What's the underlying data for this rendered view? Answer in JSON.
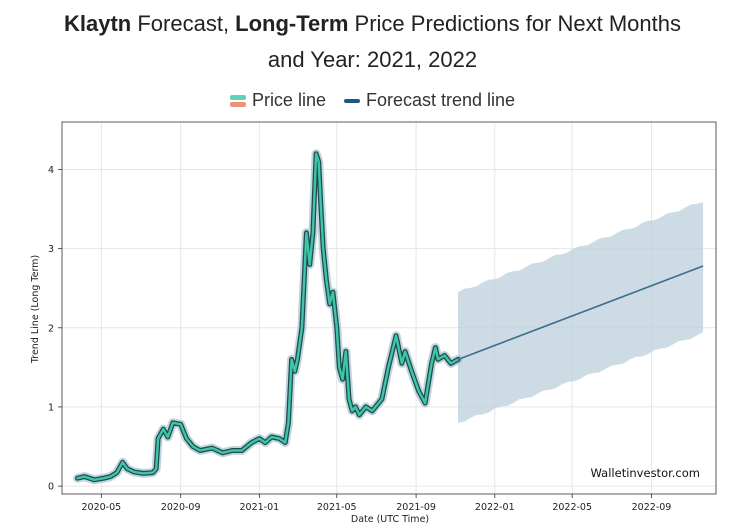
{
  "header": {
    "title_part1_bold": "Klaytn",
    "title_part2": " Forecast, ",
    "title_part3_bold": "Long-Term",
    "title_part4": " Price Predictions for Next Months",
    "title_line2": "and Year: 2021, 2022"
  },
  "legend": {
    "price_label": "Price line",
    "trend_label": "Forecast trend line"
  },
  "watermark": "Walletinvestor.com",
  "colors": {
    "price_line": "#3ec6a8",
    "price_outline": "#1f4d4d",
    "trend_line": "#3b6f8e",
    "band_fill": "#bccfdb",
    "price_band": "#8fb0c2"
  },
  "chart_data": {
    "type": "line",
    "xlabel": "Date (UTC Time)",
    "ylabel": "Trend Line (Long Term)",
    "x_ticks": [
      "2020-05",
      "2020-09",
      "2021-01",
      "2021-05",
      "2021-09",
      "2022-01",
      "2022-05",
      "2022-09"
    ],
    "y_ticks": [
      "0",
      "1",
      "2",
      "3",
      "4"
    ],
    "ylim": [
      -0.1,
      4.6
    ],
    "xlim": [
      "2020-03-01",
      "2022-12-10"
    ],
    "grid": true,
    "legend_position": "top-center",
    "series": [
      {
        "name": "Price line",
        "x": [
          "2020-03-25",
          "2020-04-05",
          "2020-04-20",
          "2020-05-05",
          "2020-05-15",
          "2020-05-25",
          "2020-06-03",
          "2020-06-10",
          "2020-06-20",
          "2020-07-05",
          "2020-07-20",
          "2020-07-25",
          "2020-07-28",
          "2020-08-05",
          "2020-08-12",
          "2020-08-20",
          "2020-09-01",
          "2020-09-10",
          "2020-09-20",
          "2020-10-01",
          "2020-10-20",
          "2020-11-05",
          "2020-11-20",
          "2020-12-05",
          "2020-12-20",
          "2021-01-01",
          "2021-01-10",
          "2021-01-20",
          "2021-02-01",
          "2021-02-10",
          "2021-02-15",
          "2021-02-20",
          "2021-02-25",
          "2021-03-01",
          "2021-03-08",
          "2021-03-15",
          "2021-03-20",
          "2021-03-25",
          "2021-03-30",
          "2021-04-03",
          "2021-04-06",
          "2021-04-10",
          "2021-04-15",
          "2021-04-20",
          "2021-04-25",
          "2021-05-01",
          "2021-05-05",
          "2021-05-10",
          "2021-05-15",
          "2021-05-20",
          "2021-05-25",
          "2021-05-30",
          "2021-06-05",
          "2021-06-15",
          "2021-06-25",
          "2021-07-10",
          "2021-07-20",
          "2021-08-01",
          "2021-08-10",
          "2021-08-15",
          "2021-08-25",
          "2021-09-05",
          "2021-09-15",
          "2021-09-25",
          "2021-10-01",
          "2021-10-05",
          "2021-10-15",
          "2021-10-25",
          "2021-11-05"
        ],
        "y": [
          0.1,
          0.12,
          0.08,
          0.1,
          0.12,
          0.17,
          0.3,
          0.22,
          0.18,
          0.16,
          0.17,
          0.22,
          0.6,
          0.72,
          0.62,
          0.8,
          0.78,
          0.6,
          0.5,
          0.45,
          0.48,
          0.42,
          0.45,
          0.45,
          0.55,
          0.6,
          0.55,
          0.62,
          0.6,
          0.55,
          0.8,
          1.6,
          1.45,
          1.6,
          2.0,
          3.2,
          2.8,
          3.2,
          4.2,
          4.1,
          3.6,
          3.0,
          2.6,
          2.3,
          2.45,
          2.0,
          1.5,
          1.35,
          1.7,
          1.1,
          0.95,
          1.0,
          0.9,
          1.0,
          0.95,
          1.1,
          1.5,
          1.9,
          1.55,
          1.7,
          1.45,
          1.2,
          1.05,
          1.55,
          1.75,
          1.6,
          1.65,
          1.55,
          1.6
        ]
      },
      {
        "name": "Forecast trend line",
        "x": [
          "2021-11-05",
          "2022-11-20"
        ],
        "y": [
          1.6,
          2.78
        ],
        "band_upper": [
          2.45,
          3.6
        ],
        "band_lower": [
          0.8,
          1.93
        ]
      }
    ]
  }
}
